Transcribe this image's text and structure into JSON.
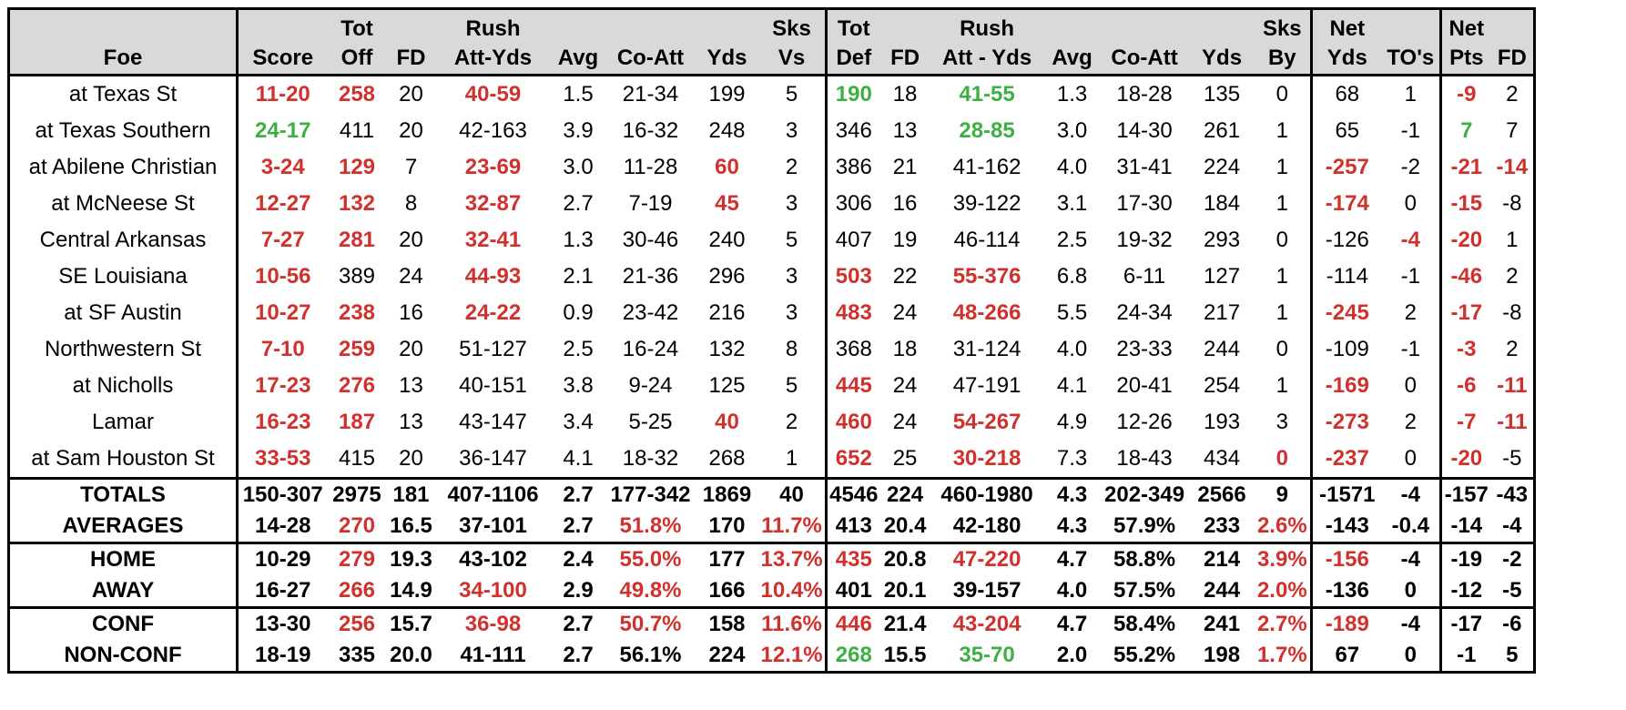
{
  "header": {
    "row1": [
      "",
      "",
      "Tot",
      "",
      "Rush",
      "",
      "",
      "",
      "Sks",
      "Tot",
      "",
      "Rush",
      "",
      "",
      "",
      "Sks",
      "Net",
      "",
      "Net",
      ""
    ],
    "row2": [
      "Foe",
      "Score",
      "Off",
      "FD",
      "Att-Yds",
      "Avg",
      "Co-Att",
      "Yds",
      "Vs",
      "Def",
      "FD",
      "Att - Yds",
      "Avg",
      "Co-Att",
      "Yds",
      "By",
      "Yds",
      "TO's",
      "Pts",
      "FD"
    ]
  },
  "games": [
    {
      "foe": "at Texas St",
      "indent": false,
      "cells": [
        "11-20",
        "258",
        "20",
        "40-59",
        "1.5",
        "21-34",
        "199",
        "5",
        "190",
        "18",
        "41-55",
        "1.3",
        "18-28",
        "135",
        "0",
        "68",
        "1",
        "-9",
        "2"
      ],
      "colors": [
        "r",
        "r",
        "",
        "r",
        "",
        "",
        "",
        "",
        "g",
        "",
        "g",
        "",
        "",
        "",
        "",
        "",
        "",
        "r",
        ""
      ]
    },
    {
      "foe": "at Texas Southern",
      "indent": false,
      "cells": [
        "24-17",
        "411",
        "20",
        "42-163",
        "3.9",
        "16-32",
        "248",
        "3",
        "346",
        "13",
        "28-85",
        "3.0",
        "14-30",
        "261",
        "1",
        "65",
        "-1",
        "7",
        "7"
      ],
      "colors": [
        "g",
        "",
        "",
        "",
        "",
        "",
        "",
        "",
        "",
        "",
        "g",
        "",
        "",
        "",
        "",
        "",
        "",
        "g",
        ""
      ]
    },
    {
      "foe": "at Abilene Christian",
      "indent": false,
      "cells": [
        "3-24",
        "129",
        "7",
        "23-69",
        "3.0",
        "11-28",
        "60",
        "2",
        "386",
        "21",
        "41-162",
        "4.0",
        "31-41",
        "224",
        "1",
        "-257",
        "-2",
        "-21",
        "-14"
      ],
      "colors": [
        "r",
        "r",
        "",
        "r",
        "",
        "",
        "r",
        "",
        "",
        "",
        "",
        "",
        "",
        "",
        "",
        "r",
        "",
        "r",
        "r"
      ]
    },
    {
      "foe": "at McNeese St",
      "indent": false,
      "cells": [
        "12-27",
        "132",
        "8",
        "32-87",
        "2.7",
        "7-19",
        "45",
        "3",
        "306",
        "16",
        "39-122",
        "3.1",
        "17-30",
        "184",
        "1",
        "-174",
        "0",
        "-15",
        "-8"
      ],
      "colors": [
        "r",
        "r",
        "",
        "r",
        "",
        "",
        "r",
        "",
        "",
        "",
        "",
        "",
        "",
        "",
        "",
        "r",
        "",
        "r",
        ""
      ]
    },
    {
      "foe": "Central Arkansas",
      "indent": true,
      "cells": [
        "7-27",
        "281",
        "20",
        "32-41",
        "1.3",
        "30-46",
        "240",
        "5",
        "407",
        "19",
        "46-114",
        "2.5",
        "19-32",
        "293",
        "0",
        "-126",
        "-4",
        "-20",
        "1"
      ],
      "colors": [
        "r",
        "r",
        "",
        "r",
        "",
        "",
        "",
        "",
        "",
        "",
        "",
        "",
        "",
        "",
        "",
        "",
        "r",
        "r",
        ""
      ]
    },
    {
      "foe": "SE Louisiana",
      "indent": true,
      "cells": [
        "10-56",
        "389",
        "24",
        "44-93",
        "2.1",
        "21-36",
        "296",
        "3",
        "503",
        "22",
        "55-376",
        "6.8",
        "6-11",
        "127",
        "1",
        "-114",
        "-1",
        "-46",
        "2"
      ],
      "colors": [
        "r",
        "",
        "",
        "r",
        "",
        "",
        "",
        "",
        "r",
        "",
        "r",
        "",
        "",
        "",
        "",
        "",
        "",
        "r",
        ""
      ]
    },
    {
      "foe": "at SF Austin",
      "indent": false,
      "cells": [
        "10-27",
        "238",
        "16",
        "24-22",
        "0.9",
        "23-42",
        "216",
        "3",
        "483",
        "24",
        "48-266",
        "5.5",
        "24-34",
        "217",
        "1",
        "-245",
        "2",
        "-17",
        "-8"
      ],
      "colors": [
        "r",
        "r",
        "",
        "r",
        "",
        "",
        "",
        "",
        "r",
        "",
        "r",
        "",
        "",
        "",
        "",
        "r",
        "",
        "r",
        ""
      ]
    },
    {
      "foe": "Northwestern St",
      "indent": true,
      "cells": [
        "7-10",
        "259",
        "20",
        "51-127",
        "2.5",
        "16-24",
        "132",
        "8",
        "368",
        "18",
        "31-124",
        "4.0",
        "23-33",
        "244",
        "0",
        "-109",
        "-1",
        "-3",
        "2"
      ],
      "colors": [
        "r",
        "r",
        "",
        "",
        "",
        "",
        "",
        "",
        "",
        "",
        "",
        "",
        "",
        "",
        "",
        "",
        "",
        "r",
        ""
      ]
    },
    {
      "foe": "at Nicholls",
      "indent": false,
      "cells": [
        "17-23",
        "276",
        "13",
        "40-151",
        "3.8",
        "9-24",
        "125",
        "5",
        "445",
        "24",
        "47-191",
        "4.1",
        "20-41",
        "254",
        "1",
        "-169",
        "0",
        "-6",
        "-11"
      ],
      "colors": [
        "r",
        "r",
        "",
        "",
        "",
        "",
        "",
        "",
        "r",
        "",
        "",
        "",
        "",
        "",
        "",
        "r",
        "",
        "r",
        "r"
      ]
    },
    {
      "foe": "Lamar",
      "indent": true,
      "cells": [
        "16-23",
        "187",
        "13",
        "43-147",
        "3.4",
        "5-25",
        "40",
        "2",
        "460",
        "24",
        "54-267",
        "4.9",
        "12-26",
        "193",
        "3",
        "-273",
        "2",
        "-7",
        "-11"
      ],
      "colors": [
        "r",
        "r",
        "",
        "",
        "",
        "",
        "r",
        "",
        "r",
        "",
        "r",
        "",
        "",
        "",
        "",
        "r",
        "",
        "r",
        "r"
      ]
    },
    {
      "foe": "at Sam Houston St",
      "indent": false,
      "cells": [
        "33-53",
        "415",
        "20",
        "36-147",
        "4.1",
        "18-32",
        "268",
        "1",
        "652",
        "25",
        "30-218",
        "7.3",
        "18-43",
        "434",
        "0",
        "-237",
        "0",
        "-20",
        "-5"
      ],
      "colors": [
        "r",
        "",
        "",
        "",
        "",
        "",
        "",
        "",
        "r",
        "",
        "r",
        "",
        "",
        "",
        "r",
        "r",
        "",
        "r",
        ""
      ]
    }
  ],
  "summary": [
    {
      "label": "TOTALS",
      "cells": [
        "150-307",
        "2975",
        "181",
        "407-1106",
        "2.7",
        "177-342",
        "1869",
        "40",
        "4546",
        "224",
        "460-1980",
        "4.3",
        "202-349",
        "2566",
        "9",
        "-1571",
        "-4",
        "-157",
        "-43"
      ],
      "colors": [
        "",
        "",
        "",
        "",
        "",
        "",
        "",
        "",
        "",
        "",
        "",
        "",
        "",
        "",
        "",
        "",
        "",
        "",
        ""
      ],
      "first": true
    },
    {
      "label": "AVERAGES",
      "cells": [
        "14-28",
        "270",
        "16.5",
        "37-101",
        "2.7",
        "51.8%",
        "170",
        "11.7%",
        "413",
        "20.4",
        "42-180",
        "4.3",
        "57.9%",
        "233",
        "2.6%",
        "-143",
        "-0.4",
        "-14",
        "-4"
      ],
      "colors": [
        "",
        "r",
        "",
        "",
        "",
        "r",
        "",
        "r",
        "",
        "",
        "",
        "",
        "",
        "",
        "r",
        "",
        "",
        "",
        ""
      ],
      "first": false
    },
    {
      "label": "HOME",
      "cells": [
        "10-29",
        "279",
        "19.3",
        "43-102",
        "2.4",
        "55.0%",
        "177",
        "13.7%",
        "435",
        "20.8",
        "47-220",
        "4.7",
        "58.8%",
        "214",
        "3.9%",
        "-156",
        "-4",
        "-19",
        "-2"
      ],
      "colors": [
        "",
        "r",
        "",
        "",
        "",
        "r",
        "",
        "r",
        "r",
        "",
        "r",
        "",
        "",
        "",
        "r",
        "r",
        "",
        "",
        ""
      ],
      "first": true
    },
    {
      "label": "AWAY",
      "cells": [
        "16-27",
        "266",
        "14.9",
        "34-100",
        "2.9",
        "49.8%",
        "166",
        "10.4%",
        "401",
        "20.1",
        "39-157",
        "4.0",
        "57.5%",
        "244",
        "2.0%",
        "-136",
        "0",
        "-12",
        "-5"
      ],
      "colors": [
        "",
        "r",
        "",
        "r",
        "",
        "r",
        "",
        "r",
        "",
        "",
        "",
        "",
        "",
        "",
        "r",
        "",
        "",
        "",
        ""
      ],
      "first": false
    },
    {
      "label": "CONF",
      "cells": [
        "13-30",
        "256",
        "15.7",
        "36-98",
        "2.7",
        "50.7%",
        "158",
        "11.6%",
        "446",
        "21.4",
        "43-204",
        "4.7",
        "58.4%",
        "241",
        "2.7%",
        "-189",
        "-4",
        "-17",
        "-6"
      ],
      "colors": [
        "",
        "r",
        "",
        "r",
        "",
        "r",
        "",
        "r",
        "r",
        "",
        "r",
        "",
        "",
        "",
        "r",
        "r",
        "",
        "",
        ""
      ],
      "first": true
    },
    {
      "label": "NON-CONF",
      "cells": [
        "18-19",
        "335",
        "20.0",
        "41-111",
        "2.7",
        "56.1%",
        "224",
        "12.1%",
        "268",
        "15.5",
        "35-70",
        "2.0",
        "55.2%",
        "198",
        "1.7%",
        "67",
        "0",
        "-1",
        "5"
      ],
      "colors": [
        "",
        "",
        "",
        "",
        "",
        "",
        "",
        "r",
        "g",
        "",
        "g",
        "",
        "",
        "",
        "r",
        "",
        "",
        "",
        ""
      ],
      "first": false
    }
  ],
  "colors": {
    "red": "#d0312d",
    "green": "#3cb043",
    "header_bg": "#d9d9d9"
  }
}
